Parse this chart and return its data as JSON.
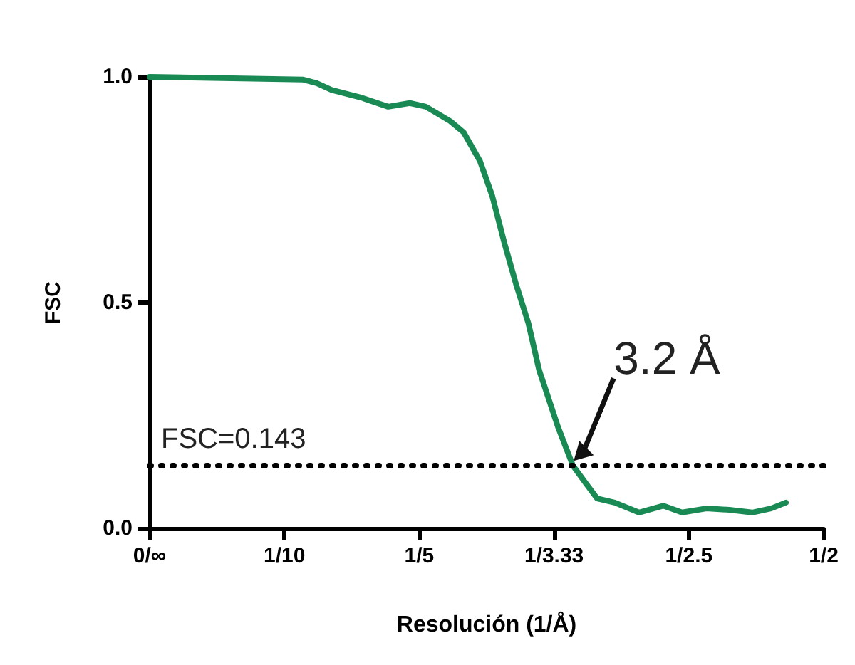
{
  "chart_data": {
    "type": "line",
    "xlabel": "Resolución (1/Å)",
    "ylabel": "FSC",
    "x": [
      0,
      0.114,
      0.124,
      0.135,
      0.156,
      0.177,
      0.193,
      0.205,
      0.223,
      0.233,
      0.245,
      0.254,
      0.263,
      0.272,
      0.281,
      0.289,
      0.303,
      0.314,
      0.324,
      0.332,
      0.345,
      0.363,
      0.381,
      0.395,
      0.413,
      0.43,
      0.447,
      0.461,
      0.472
    ],
    "series": [
      {
        "color": "#1a8a55",
        "values": [
          1.0,
          0.994,
          0.986,
          0.971,
          0.955,
          0.934,
          0.942,
          0.934,
          0.902,
          0.877,
          0.814,
          0.738,
          0.634,
          0.539,
          0.454,
          0.35,
          0.224,
          0.139,
          0.098,
          0.066,
          0.057,
          0.035,
          0.05,
          0.035,
          0.044,
          0.041,
          0.035,
          0.044,
          0.057
        ]
      }
    ],
    "xlim": [
      0,
      0.5
    ],
    "xticks": [
      {
        "value": 0,
        "label": "0/∞"
      },
      {
        "value": 0.1,
        "label": "1/10"
      },
      {
        "value": 0.2,
        "label": "1/5"
      },
      {
        "value": 0.3,
        "label": "1/3.33"
      },
      {
        "value": 0.4,
        "label": "1/2.5"
      },
      {
        "value": 0.5,
        "label": "1/2"
      }
    ],
    "ylim": [
      0,
      1
    ],
    "yticks": [
      {
        "value": 0,
        "label": "0.0"
      },
      {
        "value": 0.5,
        "label": "0.5"
      },
      {
        "value": 1,
        "label": "1.0"
      }
    ],
    "ref_lines": [
      {
        "axis": "y",
        "value": 0.143,
        "label": "FSC=0.143",
        "color": "#000000",
        "line_style": "dotted"
      }
    ],
    "annotations": [
      {
        "text": "3.2 Å",
        "x": 0.3125,
        "y": 0.143
      }
    ],
    "grid": false,
    "marker": "none",
    "line_style": "solid"
  }
}
